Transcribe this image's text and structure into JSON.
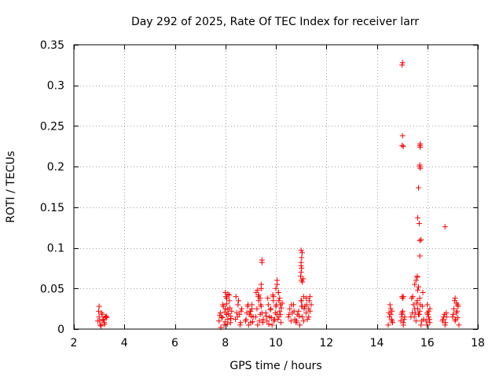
{
  "chart_data": {
    "type": "scatter",
    "title": "Day 292 of 2025, Rate Of TEC Index for receiver larr",
    "xlabel": "GPS time / hours",
    "ylabel": "ROTI / TECUs",
    "xlim": [
      2,
      18
    ],
    "ylim": [
      0,
      0.35
    ],
    "xticks": [
      2,
      4,
      6,
      8,
      10,
      12,
      14,
      16,
      18
    ],
    "xtick_labels": [
      "2",
      "4",
      "6",
      "8",
      "10",
      "12",
      "14",
      "16",
      "18"
    ],
    "yticks": [
      0,
      0.05,
      0.1,
      0.15,
      0.2,
      0.25,
      0.3,
      0.35
    ],
    "ytick_labels": [
      "0",
      "0.05",
      "0.1",
      "0.15",
      "0.2",
      "0.25",
      "0.3",
      "0.35"
    ],
    "grid": true,
    "marker": "plus",
    "color": "#ff0000",
    "series": [
      {
        "name": "ROTI",
        "x": [
          2.95,
          3.0,
          3.05,
          3.1,
          3.0,
          3.15,
          3.2,
          3.25,
          3.3,
          2.98,
          3.02,
          3.08,
          3.12,
          3.18,
          3.22,
          3.28,
          7.75,
          7.8,
          7.85,
          7.9,
          7.95,
          8.0,
          8.05,
          8.1,
          8.15,
          8.2,
          8.25,
          7.82,
          7.88,
          7.92,
          8.02,
          8.08,
          8.12,
          8.18,
          8.22,
          7.78,
          7.98,
          8.0,
          8.05,
          8.1,
          8.15,
          8.0,
          8.05,
          8.1,
          8.2,
          8.4,
          8.45,
          8.5,
          8.55,
          8.6,
          8.65,
          8.42,
          8.48,
          8.52,
          8.58,
          8.62,
          8.8,
          8.85,
          8.9,
          8.95,
          9.0,
          9.05,
          9.1,
          8.82,
          8.88,
          8.92,
          8.98,
          9.02,
          9.08,
          9.0,
          9.05,
          9.2,
          9.25,
          9.3,
          9.35,
          9.4,
          9.45,
          9.5,
          9.22,
          9.28,
          9.32,
          9.38,
          9.42,
          9.48,
          9.28,
          9.32,
          9.38,
          9.42,
          9.42,
          9.45,
          9.45,
          9.6,
          9.65,
          9.7,
          9.75,
          9.8,
          9.85,
          9.9,
          9.95,
          10.0,
          10.05,
          10.1,
          10.15,
          10.2,
          10.25,
          9.62,
          9.68,
          9.72,
          9.78,
          9.82,
          9.88,
          9.92,
          9.98,
          10.02,
          10.08,
          10.12,
          10.18,
          10.22,
          9.9,
          10.0,
          10.05,
          10.1,
          10.15,
          10.12,
          10.18,
          10.05,
          10.5,
          10.55,
          10.6,
          10.65,
          10.7,
          10.75,
          10.8,
          10.85,
          10.9,
          10.95,
          11.0,
          11.05,
          11.1,
          11.15,
          11.2,
          11.25,
          11.3,
          11.35,
          11.4,
          10.52,
          10.62,
          10.72,
          10.82,
          10.92,
          11.02,
          11.12,
          11.22,
          11.32,
          10.98,
          11.0,
          11.02,
          11.0,
          11.02,
          11.04,
          11.0,
          11.02,
          11.05,
          11.08,
          11.0,
          11.02,
          11.05,
          11.1,
          11.3,
          11.35,
          11.2,
          14.45,
          14.5,
          14.55,
          14.6,
          14.48,
          14.52,
          14.58,
          14.55,
          14.6,
          14.62,
          14.95,
          15.0,
          15.05,
          15.1,
          14.98,
          15.02,
          15.08,
          15.0,
          15.02,
          15.05,
          15.0,
          15.02,
          15.05,
          15.0,
          15.02,
          15.0,
          15.05,
          15.35,
          15.4,
          15.45,
          15.5,
          15.55,
          15.6,
          15.65,
          15.7,
          15.75,
          15.8,
          15.85,
          15.38,
          15.42,
          15.48,
          15.52,
          15.58,
          15.62,
          15.68,
          15.72,
          15.78,
          15.82,
          15.5,
          15.55,
          15.6,
          15.7,
          15.75,
          15.62,
          15.7,
          15.68,
          15.65,
          15.7,
          15.7,
          15.72,
          15.7,
          15.72,
          15.72,
          15.65,
          15.7,
          15.62,
          15.6,
          15.95,
          16.0,
          16.05,
          16.1,
          15.98,
          16.02,
          16.08,
          16.0,
          16.05,
          16.1,
          16.6,
          16.65,
          16.7,
          16.75,
          16.62,
          16.68,
          16.72,
          16.7,
          16.75,
          17.0,
          17.05,
          17.1,
          17.15,
          17.2,
          17.25,
          17.02,
          17.08,
          17.12,
          17.18,
          17.22,
          17.1,
          17.15,
          17.2
        ],
        "y": [
          0.01,
          0.015,
          0.005,
          0.02,
          0.028,
          0.012,
          0.008,
          0.015,
          0.014,
          0.022,
          0.01,
          0.004,
          0.018,
          0.011,
          0.006,
          0.016,
          0.01,
          0.02,
          0.015,
          0.03,
          0.005,
          0.025,
          0.018,
          0.012,
          0.035,
          0.008,
          0.022,
          0.002,
          0.014,
          0.028,
          0.04,
          0.006,
          0.019,
          0.026,
          0.013,
          0.017,
          0.021,
          0.045,
          0.038,
          0.043,
          0.042,
          0.009,
          0.031,
          0.024,
          0.016,
          0.012,
          0.02,
          0.03,
          0.018,
          0.008,
          0.025,
          0.04,
          0.015,
          0.035,
          0.005,
          0.022,
          0.01,
          0.02,
          0.03,
          0.018,
          0.008,
          0.025,
          0.015,
          0.012,
          0.028,
          0.005,
          0.022,
          0.016,
          0.009,
          0.022,
          0.03,
          0.015,
          0.025,
          0.04,
          0.01,
          0.03,
          0.02,
          0.012,
          0.045,
          0.005,
          0.035,
          0.018,
          0.028,
          0.008,
          0.048,
          0.042,
          0.038,
          0.05,
          0.055,
          0.085,
          0.082,
          0.02,
          0.01,
          0.03,
          0.015,
          0.025,
          0.005,
          0.035,
          0.012,
          0.028,
          0.018,
          0.045,
          0.022,
          0.008,
          0.032,
          0.016,
          0.038,
          0.006,
          0.024,
          0.014,
          0.042,
          0.01,
          0.02,
          0.03,
          0.012,
          0.035,
          0.018,
          0.026,
          0.04,
          0.05,
          0.06,
          0.045,
          0.038,
          0.015,
          0.03,
          0.055,
          0.015,
          0.025,
          0.01,
          0.02,
          0.03,
          0.012,
          0.008,
          0.018,
          0.022,
          0.005,
          0.035,
          0.015,
          0.01,
          0.028,
          0.02,
          0.012,
          0.025,
          0.04,
          0.03,
          0.018,
          0.03,
          0.022,
          0.01,
          0.016,
          0.028,
          0.025,
          0.03,
          0.035,
          0.065,
          0.07,
          0.075,
          0.082,
          0.088,
          0.094,
          0.097,
          0.06,
          0.058,
          0.062,
          0.078,
          0.035,
          0.028,
          0.04,
          0.015,
          0.022,
          0.038,
          0.005,
          0.015,
          0.025,
          0.01,
          0.02,
          0.03,
          0.012,
          0.018,
          0.022,
          0.008,
          0.01,
          0.02,
          0.005,
          0.015,
          0.018,
          0.022,
          0.012,
          0.04,
          0.038,
          0.04,
          0.226,
          0.238,
          0.225,
          0.325,
          0.328,
          0.015,
          0.008,
          0.015,
          0.02,
          0.03,
          0.025,
          0.01,
          0.035,
          0.018,
          0.022,
          0.005,
          0.028,
          0.012,
          0.038,
          0.04,
          0.015,
          0.02,
          0.032,
          0.025,
          0.018,
          0.03,
          0.01,
          0.045,
          0.055,
          0.06,
          0.065,
          0.09,
          0.11,
          0.137,
          0.109,
          0.13,
          0.174,
          0.2,
          0.202,
          0.198,
          0.226,
          0.228,
          0.224,
          0.052,
          0.038,
          0.048,
          0.064,
          0.01,
          0.02,
          0.015,
          0.025,
          0.005,
          0.018,
          0.012,
          0.03,
          0.022,
          0.008,
          0.01,
          0.015,
          0.005,
          0.02,
          0.012,
          0.018,
          0.008,
          0.126,
          0.015,
          0.015,
          0.025,
          0.01,
          0.02,
          0.03,
          0.005,
          0.018,
          0.035,
          0.012,
          0.022,
          0.028,
          0.038,
          0.032,
          0.014
        ]
      }
    ]
  }
}
